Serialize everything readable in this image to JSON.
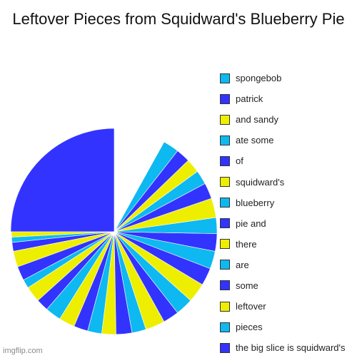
{
  "chart_data": {
    "type": "pie",
    "title": "Leftover Pieces from Squidward's Blueberry Pie",
    "start": "12 o'clock, counter-clockwise",
    "colors": {
      "blue": "#3333ff",
      "cyan": "#0db9f0",
      "yellow": "#eeee00"
    },
    "legend": [
      {
        "label": "spongebob",
        "color": "cyan"
      },
      {
        "label": "patrick",
        "color": "blue"
      },
      {
        "label": "and sandy",
        "color": "yellow"
      },
      {
        "label": "ate some",
        "color": "cyan"
      },
      {
        "label": "of",
        "color": "blue"
      },
      {
        "label": "squidward's",
        "color": "yellow"
      },
      {
        "label": "blueberry",
        "color": "cyan"
      },
      {
        "label": "pie and",
        "color": "blue"
      },
      {
        "label": "there",
        "color": "yellow"
      },
      {
        "label": "are",
        "color": "cyan"
      },
      {
        "label": "some",
        "color": "blue"
      },
      {
        "label": "leftover",
        "color": "yellow"
      },
      {
        "label": "pieces",
        "color": "cyan"
      },
      {
        "label": "the big slice is squidward's",
        "color": "blue"
      }
    ],
    "slices": [
      {
        "color": "blue",
        "degrees": 90
      },
      {
        "color": "yellow",
        "degrees": 3
      },
      {
        "color": "cyan",
        "degrees": 3
      },
      {
        "color": "blue",
        "degrees": 5
      },
      {
        "color": "yellow",
        "degrees": 9
      },
      {
        "color": "blue",
        "degrees": 8
      },
      {
        "color": "cyan",
        "degrees": 5
      },
      {
        "color": "yellow",
        "degrees": 9
      },
      {
        "color": "blue",
        "degrees": 7
      },
      {
        "color": "cyan",
        "degrees": 9
      },
      {
        "color": "yellow",
        "degrees": 9
      },
      {
        "color": "blue",
        "degrees": 8
      },
      {
        "color": "cyan",
        "degrees": 8
      },
      {
        "color": "yellow",
        "degrees": 8
      },
      {
        "color": "blue",
        "degrees": 9
      },
      {
        "color": "cyan",
        "degrees": 8
      },
      {
        "color": "yellow",
        "degrees": 11
      },
      {
        "color": "blue",
        "degrees": 9
      },
      {
        "color": "cyan",
        "degrees": 10
      },
      {
        "color": "yellow",
        "degrees": 11
      },
      {
        "color": "blue",
        "degrees": 10
      },
      {
        "color": "cyan",
        "degrees": 10
      },
      {
        "color": "blue",
        "degrees": 10
      },
      {
        "color": "cyan",
        "degrees": 9
      },
      {
        "color": "yellow",
        "degrees": 11
      },
      {
        "color": "blue",
        "degrees": 9
      },
      {
        "color": "cyan",
        "degrees": 8
      },
      {
        "color": "yellow",
        "degrees": 8
      },
      {
        "color": "blue",
        "degrees": 8
      },
      {
        "color": "cyan",
        "degrees": 9
      }
    ]
  },
  "watermark": "imgflip.com"
}
